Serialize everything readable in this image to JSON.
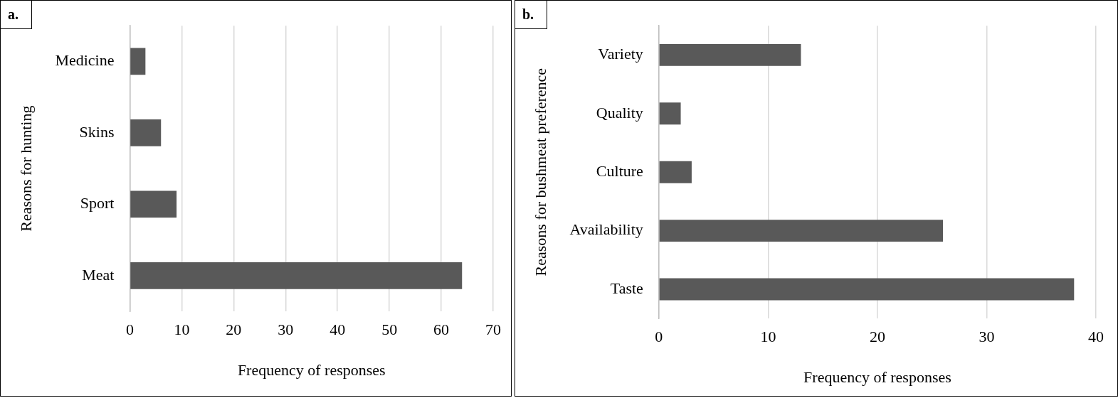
{
  "chart_data": [
    {
      "type": "bar",
      "orientation": "horizontal",
      "annotations": [
        "a."
      ],
      "xlabel": "Frequency of responses",
      "ylabel": "Reasons for hunting",
      "categories": [
        "Medicine",
        "Skins",
        "Sport",
        "Meat"
      ],
      "values": [
        3,
        6,
        9,
        64
      ],
      "color": "#595959",
      "xlim": [
        0,
        70
      ],
      "xticks": [
        0,
        10,
        20,
        30,
        40,
        50,
        60,
        70
      ],
      "grid": "x",
      "legend": false
    },
    {
      "type": "bar",
      "orientation": "horizontal",
      "annotations": [
        "b."
      ],
      "xlabel": "Frequency of responses",
      "ylabel": "Reasons for bushmeat preference",
      "categories": [
        "Variety",
        "Quality",
        "Culture",
        "Availability",
        "Taste"
      ],
      "values": [
        13,
        2,
        3,
        26,
        38
      ],
      "color": "#595959",
      "xlim": [
        0,
        40
      ],
      "xticks": [
        0,
        10,
        20,
        30,
        40
      ],
      "grid": "x",
      "legend": false
    }
  ]
}
